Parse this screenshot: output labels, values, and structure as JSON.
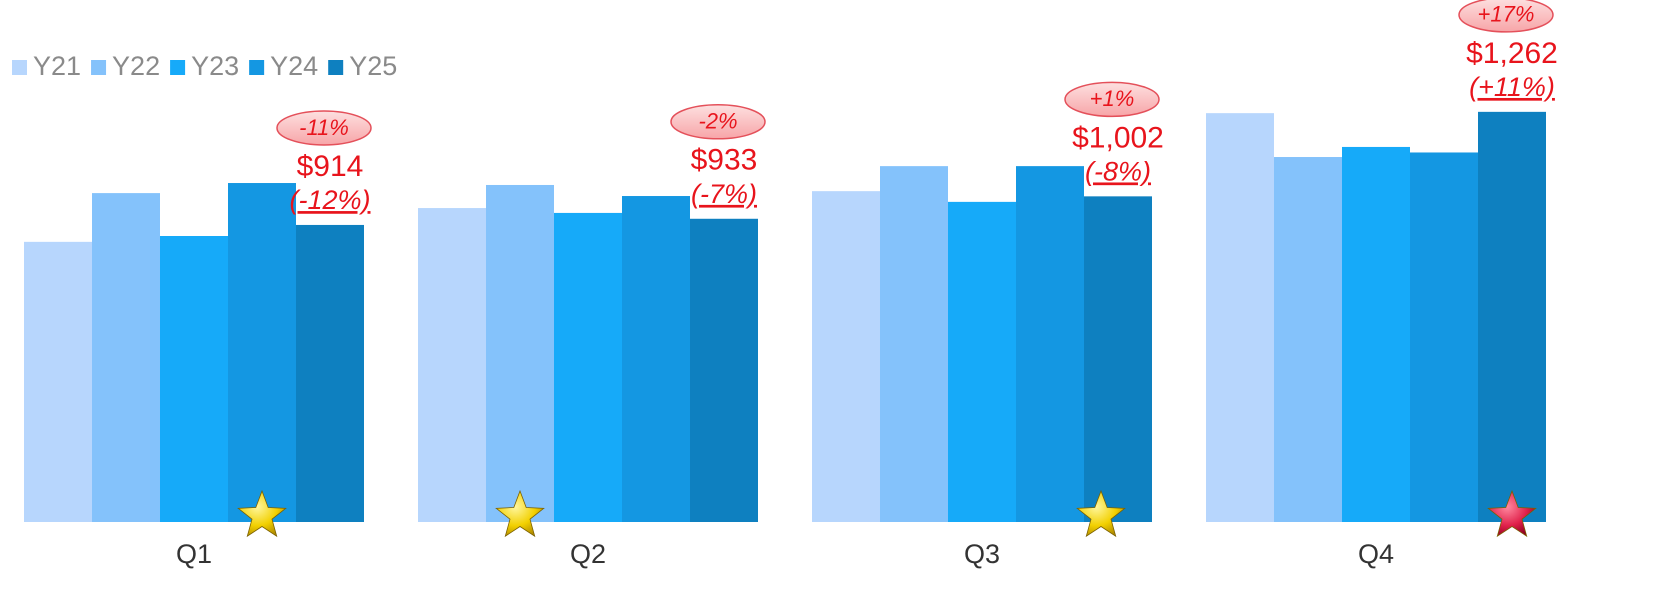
{
  "chart_data": {
    "type": "bar",
    "categories": [
      "Q1",
      "Q2",
      "Q3",
      "Q4"
    ],
    "series": [
      {
        "name": "Y21",
        "color": "#b7d6fd",
        "values": [
          862,
          966,
          1018,
          1258
        ]
      },
      {
        "name": "Y22",
        "color": "#84c2fb",
        "values": [
          1012,
          1037,
          1095,
          1123
        ]
      },
      {
        "name": "Y23",
        "color": "#16aaf9",
        "values": [
          880,
          951,
          985,
          1154
        ]
      },
      {
        "name": "Y24",
        "color": "#1497e2",
        "values": [
          1043,
          1003,
          1095,
          1137
        ]
      },
      {
        "name": "Y25",
        "color": "#0e80c0",
        "values": [
          914,
          933,
          1002,
          1262
        ],
        "value_labels": [
          "$914",
          "$933",
          "$1,002",
          "$1,262"
        ]
      }
    ],
    "annotations": [
      {
        "change": "(-12%)",
        "badge": "-11%"
      },
      {
        "change": "(-7%)",
        "badge": "-2%"
      },
      {
        "change": "(-8%)",
        "badge": "+1%"
      },
      {
        "change": "(+11%)",
        "badge": "+17%"
      }
    ],
    "ylim": [
      0,
      1300
    ],
    "legend": "top-left"
  }
}
